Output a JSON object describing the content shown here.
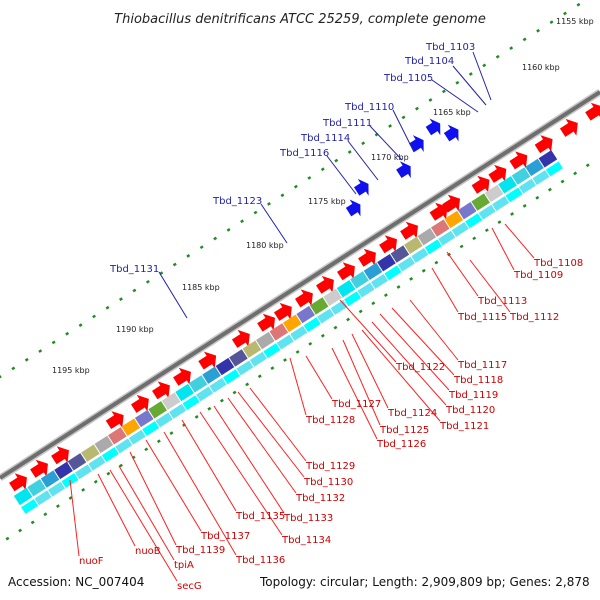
{
  "title": "Thiobacillus denitrificans ATCC 25259, complete genome",
  "footer": {
    "accession": "Accession: NC_007404",
    "topology": "Topology: circular; Length: 2,909,809 bp; Genes: 2,878"
  },
  "scale_labels": [
    "1155 kbp",
    "1160 kbp",
    "1165 kbp",
    "1170 kbp",
    "1175 kbp",
    "1180 kbp",
    "1185 kbp",
    "1190 kbp",
    "1195 kbp"
  ],
  "top_labels": [
    "Tbd_1103",
    "Tbd_1104",
    "Tbd_1105",
    "Tbd_1110",
    "Tbd_1111",
    "Tbd_1114",
    "Tbd_1116",
    "Tbd_1123",
    "Tbd_1131"
  ],
  "bottom_labels": [
    "Tbd_1108",
    "Tbd_1109",
    "Tbd_1113",
    "Tbd_1115",
    "Tbd_1112",
    "Tbd_1117",
    "Tbd_1118",
    "Tbd_1119",
    "Tbd_1120",
    "Tbd_1121",
    "Tbd_1122",
    "Tbd_1124",
    "Tbd_1125",
    "Tbd_1126",
    "Tbd_1127",
    "Tbd_1128",
    "Tbd_1129",
    "Tbd_1130",
    "Tbd_1132",
    "Tbd_1133",
    "Tbd_1134",
    "Tbd_1135",
    "Tbd_1136",
    "Tbd_1137",
    "Tbd_1139",
    "tpiA",
    "secG",
    "nuoB",
    "nuoF"
  ],
  "colors": {
    "forward_gene": "#ff0000",
    "blue_gene": "#1010ee",
    "backbone": "#808080",
    "scale_tick": "#228b22",
    "label_top": "#1f1faa",
    "label_bottom": "#cc0000"
  }
}
